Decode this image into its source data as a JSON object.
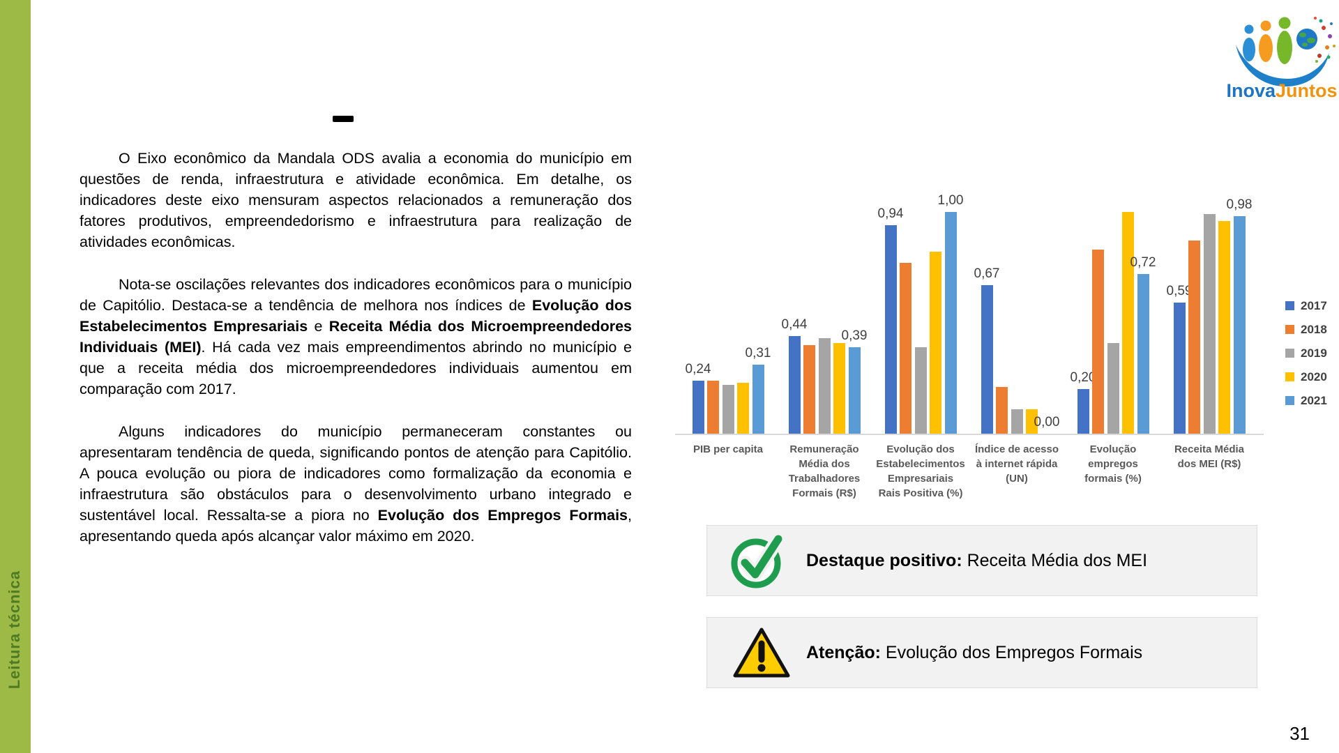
{
  "page": {
    "number": "31"
  },
  "sidebar": {
    "label": "Leitura técnica",
    "color": "#9cba45"
  },
  "logo": {
    "inova": "Inova",
    "juntos": "Juntos"
  },
  "main": {
    "paragraphs": [
      {
        "segments": [
          {
            "t": "O Eixo econômico da Mandala ODS avalia a economia do município em questões de renda, infraestrutura e atividade econômica. Em detalhe, os indicadores deste eixo mensuram aspectos relacionados a remuneração dos fatores produtivos, empreendedorismo e infraestrutura para realização de atividades econômicas.",
            "b": false
          }
        ]
      },
      {
        "segments": [
          {
            "t": "Nota-se oscilações relevantes dos indicadores econômicos para o município de Capitólio. Destaca-se a tendência de melhora nos índices de ",
            "b": false
          },
          {
            "t": "Evolução dos Estabelecimentos Empresariais",
            "b": true
          },
          {
            "t": " e ",
            "b": false
          },
          {
            "t": "Receita Média dos Microempreendedores Individuais (MEI)",
            "b": true
          },
          {
            "t": ". Há cada vez mais empreendimentos abrindo no município e que a receita média dos microempreendedores individuais aumentou em comparação com 2017.",
            "b": false
          }
        ]
      },
      {
        "segments": [
          {
            "t": "Alguns indicadores do município permaneceram constantes ou apresentaram tendência de queda, significando pontos de atenção para Capitólio. A pouca evolução ou piora de indicadores como formalização da economia e infraestrutura são obstáculos para o desenvolvimento urbano integrado e sustentável local. Ressalta-se a piora no ",
            "b": false
          },
          {
            "t": "Evolução dos Empregos Formais",
            "b": true
          },
          {
            "t": ", apresentando queda após alcançar valor máximo em 2020.",
            "b": false
          }
        ]
      }
    ]
  },
  "chart_data": {
    "type": "bar",
    "title": "",
    "xlabel": "",
    "ylabel": "",
    "ylim": [
      0,
      1.05
    ],
    "grid": false,
    "legend_position": "right",
    "categories": [
      "PIB per capita",
      "Remuneração Média dos Trabalhadores Formais (R$)",
      "Evolução dos Estabelecimentos Empresariais Rais Positiva (%)",
      "Índice de acesso à internet rápida (UN)",
      "Evolução empregos formais (%)",
      "Receita Média dos MEI (R$)"
    ],
    "series": [
      {
        "name": "2017",
        "color": "#4472C4",
        "values": [
          0.24,
          0.44,
          0.94,
          0.67,
          0.2,
          0.59
        ]
      },
      {
        "name": "2018",
        "color": "#ED7D31",
        "values": [
          0.24,
          0.4,
          0.77,
          0.21,
          0.83,
          0.87
        ]
      },
      {
        "name": "2019",
        "color": "#A5A5A5",
        "values": [
          0.22,
          0.43,
          0.39,
          0.11,
          0.41,
          0.99
        ]
      },
      {
        "name": "2020",
        "color": "#FFC000",
        "values": [
          0.23,
          0.41,
          0.82,
          0.11,
          1.0,
          0.96
        ]
      },
      {
        "name": "2021",
        "color": "#5B9BD5",
        "values": [
          0.31,
          0.39,
          1.0,
          0.0,
          0.72,
          0.98
        ]
      }
    ],
    "data_labels": {
      "2017": [
        "0,24",
        "0,44",
        "0,94",
        "0,67",
        "0,20",
        "0,59"
      ],
      "2021": [
        "0,31",
        "0,39",
        "1,00",
        "0,00",
        "0,72",
        "0,98"
      ]
    }
  },
  "callouts": [
    {
      "icon": "check-circle-icon",
      "prefix": "Destaque positivo:",
      "text": " Receita Média dos MEI"
    },
    {
      "icon": "warning-triangle-icon",
      "prefix": "Atenção:",
      "text": " Evolução dos Empregos Formais"
    }
  ]
}
